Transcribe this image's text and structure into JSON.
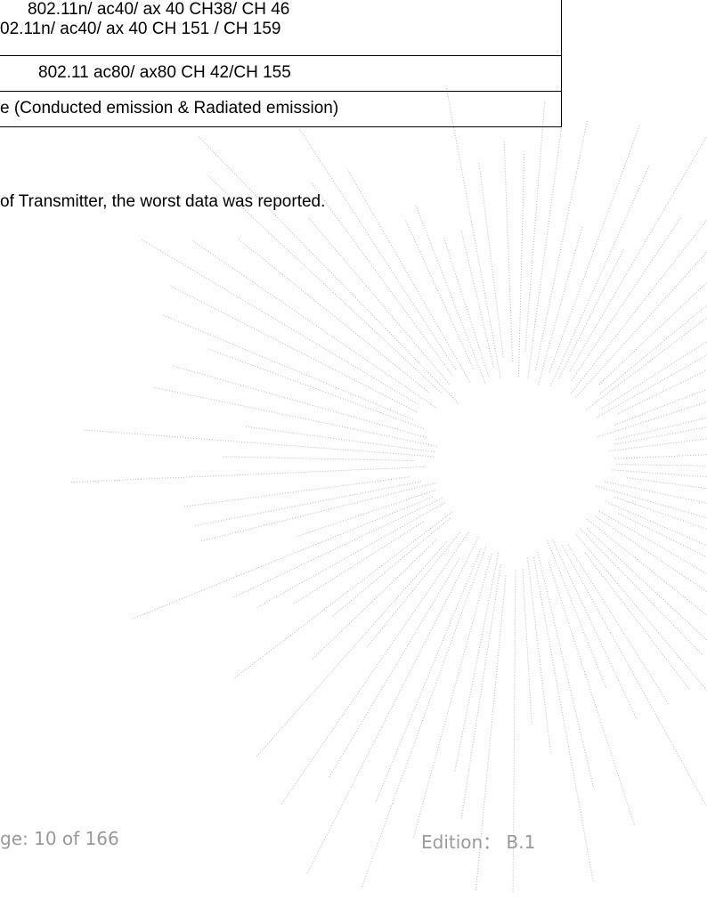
{
  "table": {
    "rows": [
      [
        "802.11n/ ac40/ ax 40 CH38/ CH 46",
        "02.11n/ ac40/ ax 40 CH 151 / CH 159"
      ],
      [
        "802.11 ac80/ ax80 CH 42/CH 155"
      ],
      [
        "e (Conducted emission & Radiated emission)"
      ]
    ]
  },
  "body": {
    "text": "of Transmitter, the worst data was reported."
  },
  "footer": {
    "page": "ge: 10 of 166",
    "edition": "Edition： B.1"
  }
}
